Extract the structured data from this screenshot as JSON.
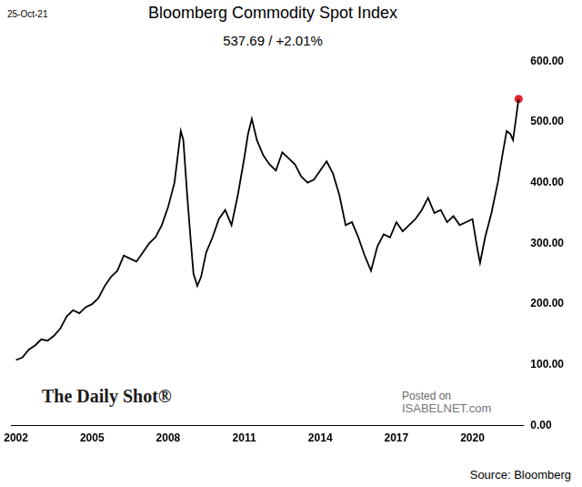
{
  "chart_data": {
    "type": "line",
    "title": "Bloomberg Commodity Spot Index",
    "subtitle": "537.69 / +2.01%",
    "date": "25-Oct-21",
    "annotations": [
      "The Daily Shot®",
      "Posted on",
      "ISABELNET.com"
    ],
    "source": "Source: Bloomberg",
    "x": [
      2002.0,
      2002.25,
      2002.5,
      2002.75,
      2003.0,
      2003.25,
      2003.5,
      2003.75,
      2004.0,
      2004.25,
      2004.5,
      2004.75,
      2005.0,
      2005.25,
      2005.5,
      2005.75,
      2006.0,
      2006.25,
      2006.5,
      2006.75,
      2007.0,
      2007.25,
      2007.5,
      2007.75,
      2008.0,
      2008.25,
      2008.5,
      2008.6,
      2008.75,
      2008.9,
      2009.0,
      2009.15,
      2009.3,
      2009.5,
      2009.75,
      2010.0,
      2010.25,
      2010.5,
      2010.75,
      2011.0,
      2011.15,
      2011.3,
      2011.5,
      2011.75,
      2012.0,
      2012.25,
      2012.5,
      2012.75,
      2013.0,
      2013.25,
      2013.5,
      2013.75,
      2014.0,
      2014.25,
      2014.5,
      2014.75,
      2015.0,
      2015.25,
      2015.5,
      2015.75,
      2016.0,
      2016.25,
      2016.5,
      2016.75,
      2017.0,
      2017.25,
      2017.5,
      2017.75,
      2018.0,
      2018.25,
      2018.5,
      2018.75,
      2019.0,
      2019.25,
      2019.5,
      2019.75,
      2020.0,
      2020.2,
      2020.3,
      2020.5,
      2020.75,
      2021.0,
      2021.2,
      2021.35,
      2021.5,
      2021.6,
      2021.7,
      2021.82
    ],
    "series": [
      {
        "color": "#000000",
        "values": [
          108,
          112,
          125,
          132,
          142,
          140,
          148,
          160,
          180,
          190,
          185,
          195,
          200,
          210,
          230,
          245,
          255,
          280,
          275,
          270,
          285,
          300,
          310,
          330,
          360,
          400,
          485,
          470,
          380,
          300,
          250,
          230,
          245,
          285,
          310,
          340,
          355,
          330,
          380,
          440,
          480,
          505,
          470,
          445,
          430,
          420,
          450,
          440,
          430,
          410,
          400,
          405,
          420,
          435,
          415,
          380,
          330,
          335,
          310,
          280,
          255,
          295,
          315,
          310,
          335,
          320,
          330,
          340,
          355,
          375,
          350,
          355,
          335,
          345,
          330,
          335,
          340,
          290,
          268,
          310,
          350,
          400,
          450,
          485,
          480,
          470,
          500,
          537.69
        ]
      },
      {
        "type": "scatter",
        "color": "#e3262b",
        "values": [
          null,
          null,
          null,
          null,
          null,
          null,
          null,
          null,
          null,
          null,
          null,
          null,
          null,
          null,
          null,
          null,
          null,
          null,
          null,
          null,
          null,
          null,
          null,
          null,
          null,
          null,
          null,
          null,
          null,
          null,
          null,
          null,
          null,
          null,
          null,
          null,
          null,
          null,
          null,
          null,
          null,
          null,
          null,
          null,
          null,
          null,
          null,
          null,
          null,
          null,
          null,
          null,
          null,
          null,
          null,
          null,
          null,
          null,
          null,
          null,
          null,
          null,
          null,
          null,
          null,
          null,
          null,
          null,
          null,
          null,
          null,
          null,
          null,
          null,
          null,
          null,
          null,
          null,
          null,
          null,
          null,
          null,
          null,
          null,
          null,
          null,
          null,
          537.69
        ]
      }
    ],
    "xlim": [
      2001.8,
      2022.0
    ],
    "xticks": [
      2002,
      2005,
      2008,
      2011,
      2014,
      2017,
      2020
    ],
    "ylim": [
      0,
      600
    ],
    "yticks": [
      {
        "value": 0,
        "label": "0.00"
      },
      {
        "value": 100,
        "label": "100.00"
      },
      {
        "value": 200,
        "label": "200.00"
      },
      {
        "value": 300,
        "label": "300.00"
      },
      {
        "value": 400,
        "label": "400.00"
      },
      {
        "value": 500,
        "label": "500.00"
      },
      {
        "value": 600,
        "label": "600.00"
      }
    ],
    "grid": false
  }
}
